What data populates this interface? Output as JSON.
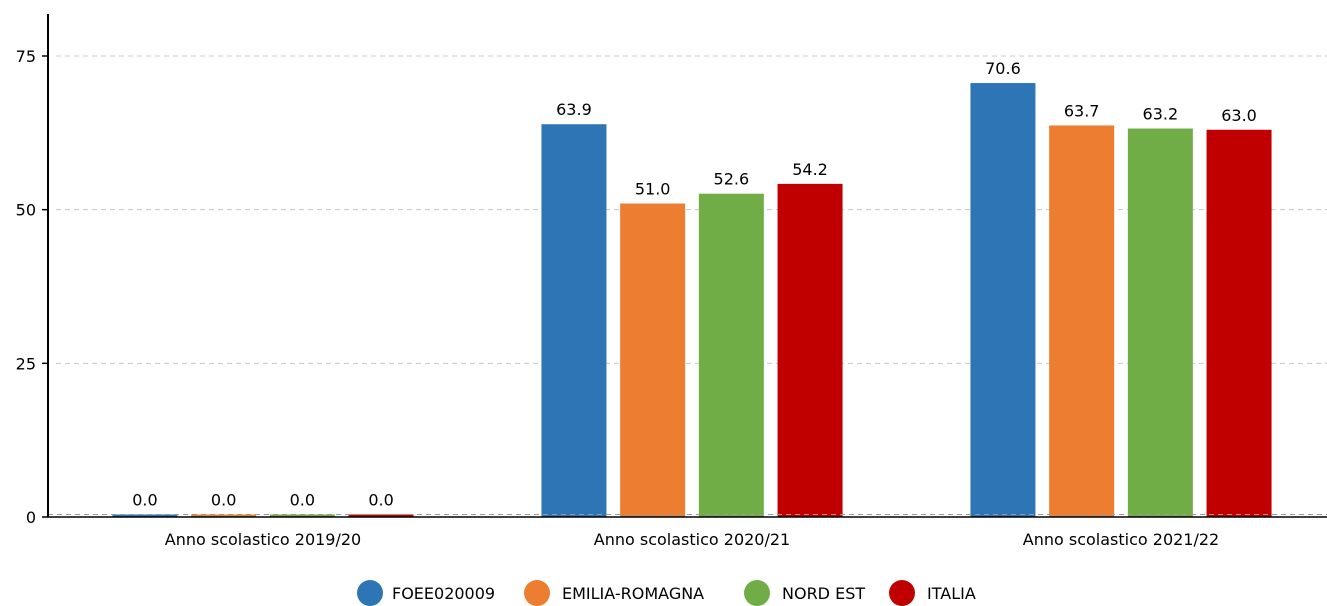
{
  "chart_data": {
    "type": "bar",
    "categories": [
      "Anno scolastico 2019/20",
      "Anno scolastico 2020/21",
      "Anno scolastico 2021/22"
    ],
    "series": [
      {
        "name": "FOEE020009",
        "color": "#2e75b6",
        "values": [
          0.0,
          63.9,
          70.6
        ],
        "labels": [
          "0.0",
          "63.9",
          "70.6"
        ]
      },
      {
        "name": "EMILIA-ROMAGNA",
        "color": "#ed7d31",
        "values": [
          0.0,
          51.0,
          63.7
        ],
        "labels": [
          "0.0",
          "51.0",
          "63.7"
        ]
      },
      {
        "name": "NORD EST",
        "color": "#70ad47",
        "values": [
          0.0,
          52.6,
          63.2
        ],
        "labels": [
          "0.0",
          "52.6",
          "63.2"
        ]
      },
      {
        "name": "ITALIA",
        "color": "#c00000",
        "values": [
          0.0,
          54.2,
          63.0
        ],
        "labels": [
          "0.0",
          "54.2",
          "63.0"
        ]
      }
    ],
    "ylim": [
      0,
      75
    ],
    "yticks": [
      0,
      25,
      50,
      75
    ],
    "ytick_labels": [
      "0",
      "25",
      "50",
      "75"
    ],
    "grid": true,
    "legend_position": "bottom-center",
    "title": "",
    "xlabel": "",
    "ylabel": ""
  }
}
